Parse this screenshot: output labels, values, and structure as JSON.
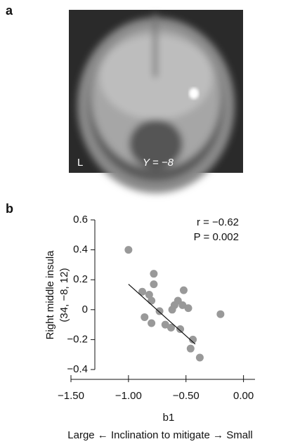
{
  "panel_labels": [
    "a",
    "b"
  ],
  "image": {
    "side_label": "L",
    "slice_label": "Y = −8"
  },
  "chart_data": {
    "type": "scatter",
    "annotations": [
      "r = −0.62",
      "P = 0.002"
    ],
    "y_label": [
      "Right middle insula",
      "(34, −8, 12)"
    ],
    "x_label": "b1",
    "x_sublabel": "Large ← Inclination to mitigate → Small",
    "color": "#999999",
    "x": [
      -1.0,
      -0.88,
      -0.82,
      -0.78,
      -0.78,
      -0.8,
      -0.86,
      -0.8,
      -0.73,
      -0.68,
      -0.63,
      -0.6,
      -0.57,
      -0.55,
      -0.52,
      -0.53,
      -0.48,
      -0.44,
      -0.46,
      -0.38,
      -0.2,
      -0.62
    ],
    "values": [
      0.4,
      0.12,
      0.1,
      0.24,
      0.17,
      0.06,
      -0.05,
      -0.09,
      -0.01,
      -0.1,
      -0.12,
      0.03,
      0.06,
      -0.13,
      0.13,
      0.03,
      0.01,
      -0.2,
      -0.26,
      -0.32,
      -0.03,
      0.0
    ],
    "fit_line": {
      "x": [
        -1.0,
        -0.42
      ],
      "y": [
        0.17,
        -0.23
      ]
    },
    "xlim": [
      -1.5,
      0.1
    ],
    "ylim": [
      -0.4,
      0.6
    ],
    "xticks": [
      {
        "value": -1.5,
        "label": "−1.50"
      },
      {
        "value": -1.0,
        "label": "−1.00"
      },
      {
        "value": -0.5,
        "label": "−0.50"
      },
      {
        "value": 0,
        "label": "0.00"
      }
    ],
    "yticks": [
      0.6,
      0.4,
      0.2,
      0,
      {
        "value": -0.2,
        "label": "−0.2"
      },
      {
        "value": -0.4,
        "label": "−0.4"
      }
    ]
  }
}
